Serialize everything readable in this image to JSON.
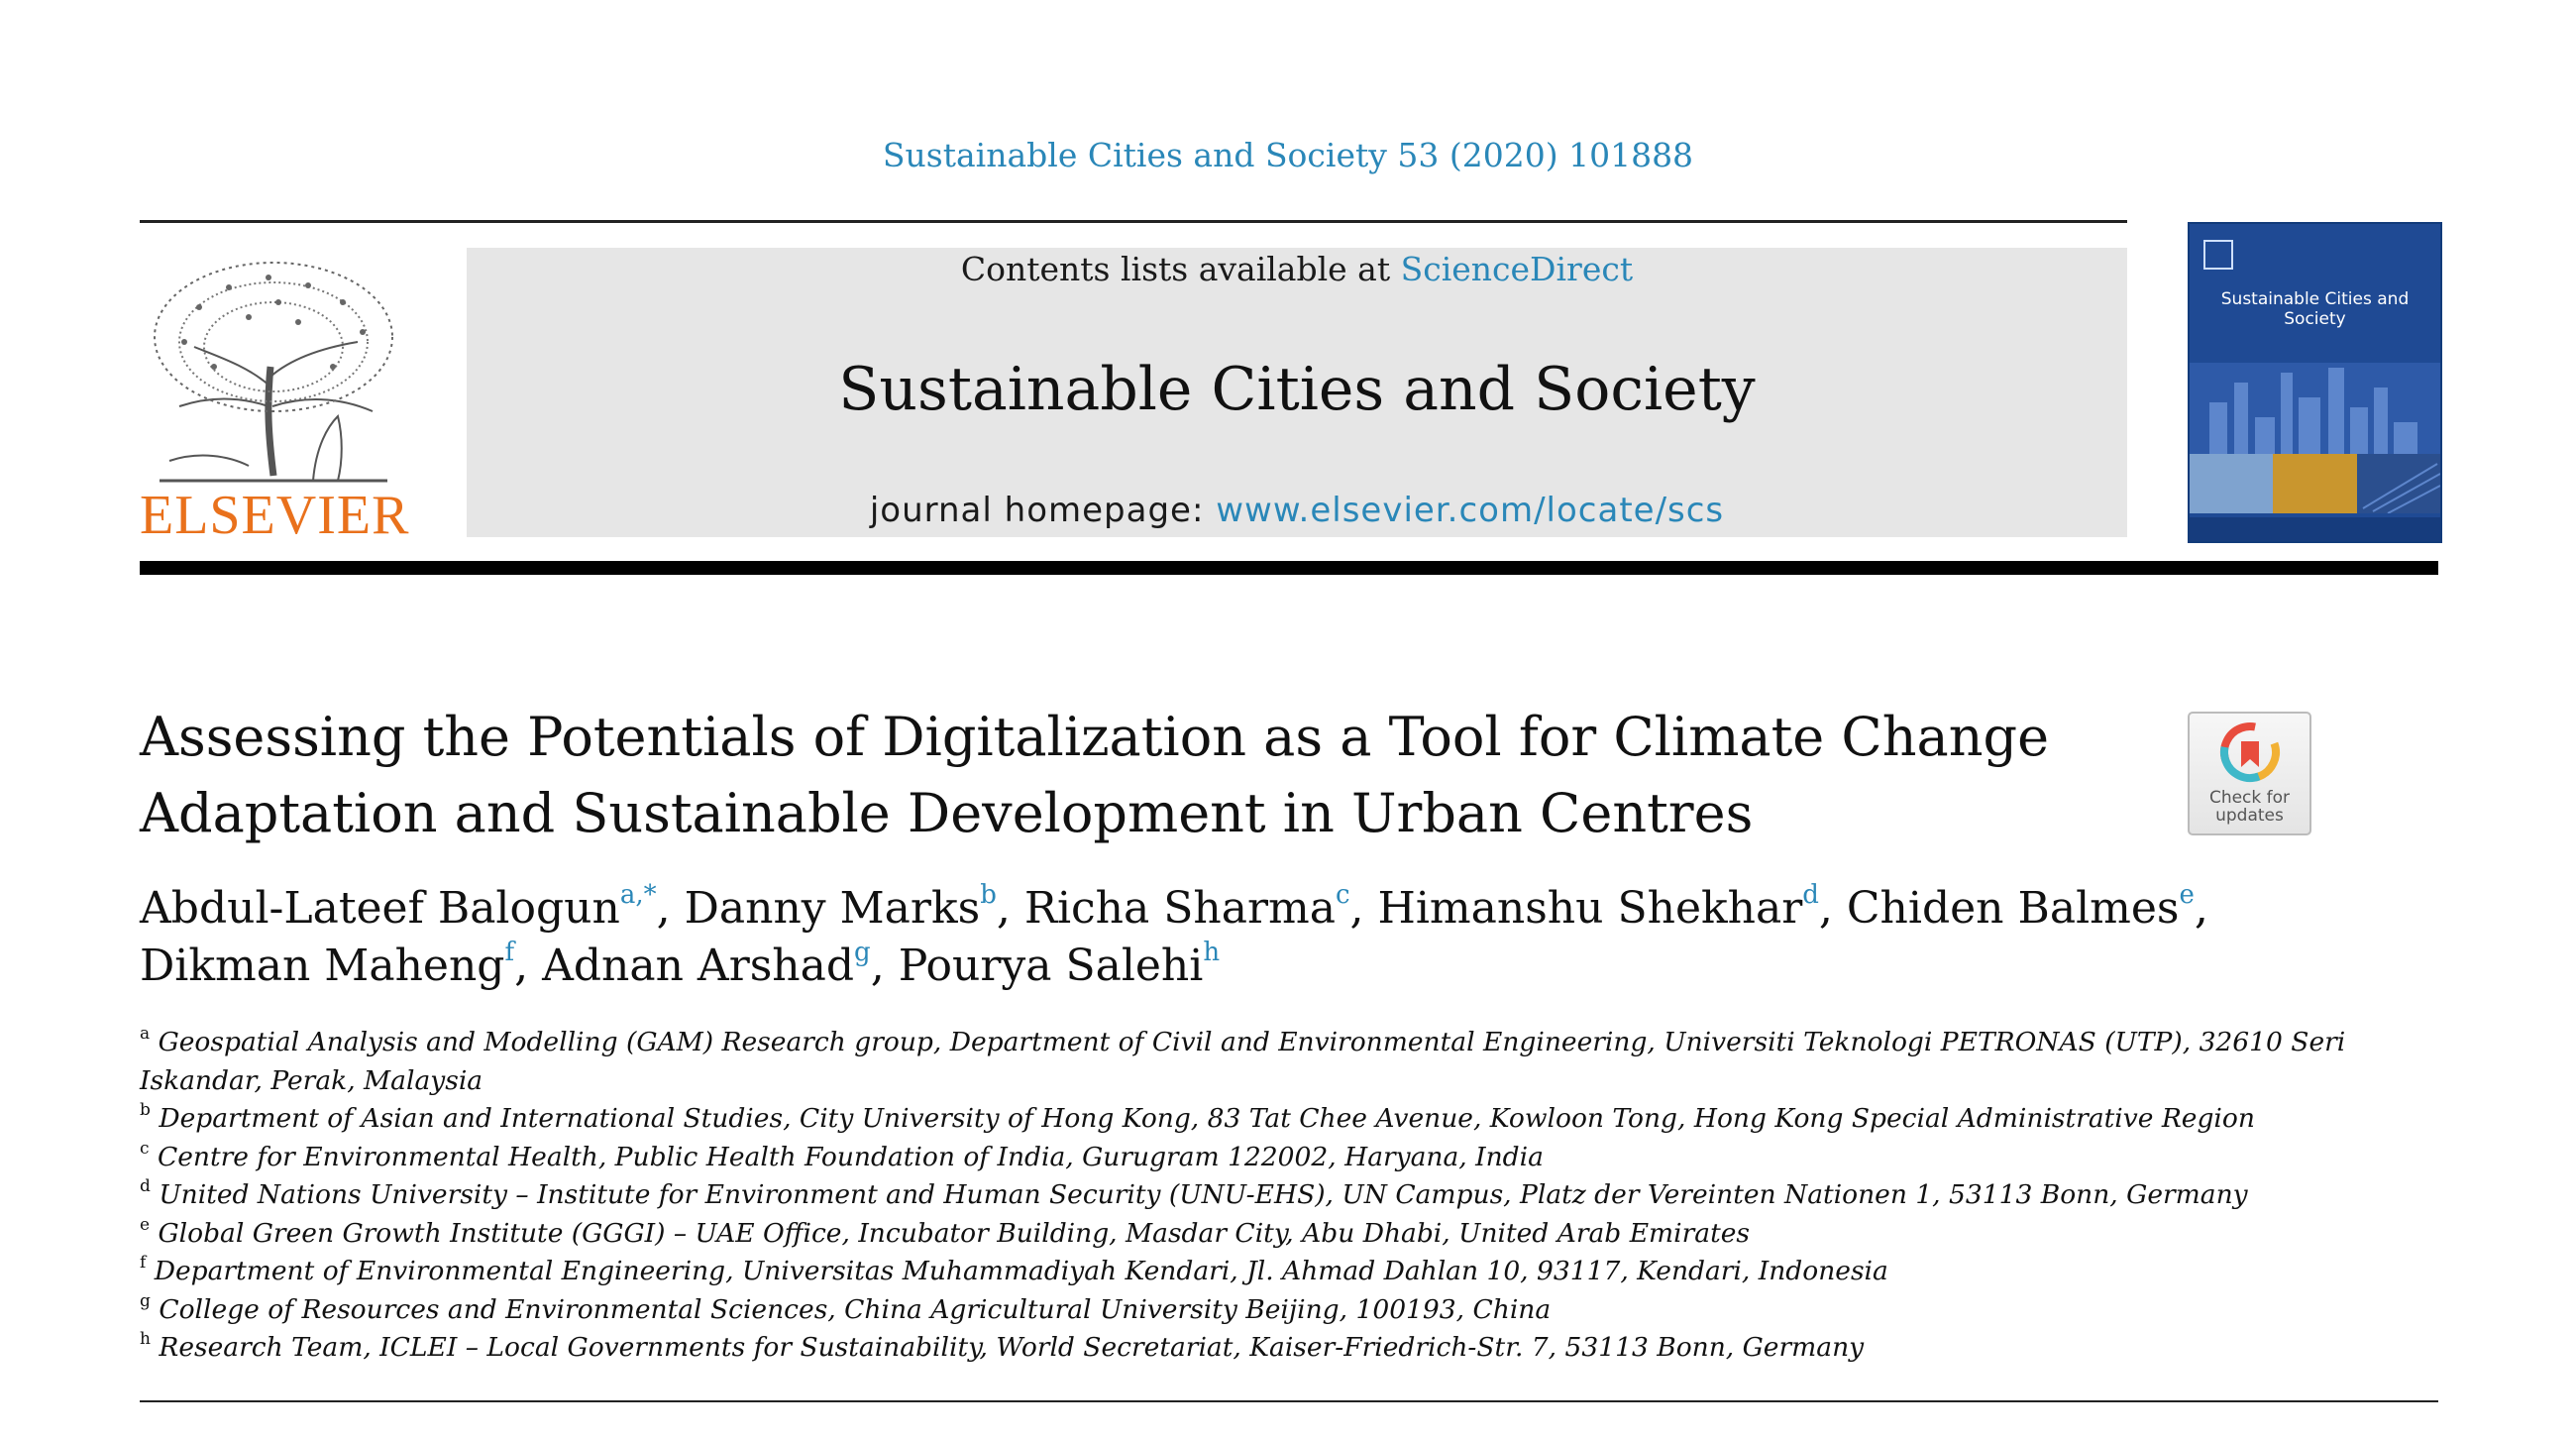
{
  "citation": "Sustainable Cities and Society 53 (2020) 101888",
  "publisher": {
    "logo_text": "ELSEVIER",
    "logo_color": "#e9711c"
  },
  "banner": {
    "contents_prefix": "Contents lists available at ",
    "contents_link": "ScienceDirect",
    "journal_title": "Sustainable Cities and Society",
    "homepage_prefix": "journal homepage: ",
    "homepage_url": "www.elsevier.com/locate/scs"
  },
  "cover": {
    "title": "Sustainable Cities and Society"
  },
  "article": {
    "title_line1": "Assessing the Potentials of Digitalization as a Tool for Climate Change",
    "title_line2": "Adaptation and Sustainable Development in Urban Centres",
    "check_label_line1": "Check for",
    "check_label_line2": "updates"
  },
  "authors": [
    {
      "name": "Abdul-Lateef Balogun",
      "mark": "a,",
      "extra": "*"
    },
    {
      "name": "Danny Marks",
      "mark": "b"
    },
    {
      "name": "Richa Sharma",
      "mark": "c"
    },
    {
      "name": "Himanshu Shekhar",
      "mark": "d"
    },
    {
      "name": "Chiden Balmes",
      "mark": "e"
    },
    {
      "name": "Dikman Maheng",
      "mark": "f"
    },
    {
      "name": "Adnan Arshad",
      "mark": "g"
    },
    {
      "name": "Pourya Salehi",
      "mark": "h"
    }
  ],
  "affiliations": [
    {
      "mark": "a",
      "line1": "Geospatial Analysis and Modelling (GAM) Research group, Department of Civil and Environmental Engineering, Universiti Teknologi PETRONAS (UTP), 32610 Seri",
      "line2": "Iskandar, Perak, Malaysia"
    },
    {
      "mark": "b",
      "line1": "Department of Asian and International Studies, City University of Hong Kong, 83 Tat Chee Avenue, Kowloon Tong, Hong Kong Special Administrative Region"
    },
    {
      "mark": "c",
      "line1": "Centre for Environmental Health, Public Health Foundation of India, Gurugram 122002, Haryana, India"
    },
    {
      "mark": "d",
      "line1": "United Nations University – Institute for Environment and Human Security (UNU-EHS), UN Campus, Platz der Vereinten Nationen 1, 53113 Bonn, Germany"
    },
    {
      "mark": "e",
      "line1": "Global Green Growth Institute (GGGI) – UAE Office, Incubator Building, Masdar City, Abu Dhabi, United Arab Emirates"
    },
    {
      "mark": "f",
      "line1": "Department of Environmental Engineering, Universitas Muhammadiyah Kendari, Jl. Ahmad Dahlan 10, 93117, Kendari, Indonesia"
    },
    {
      "mark": "g",
      "line1": "College of Resources and Environmental Sciences, China Agricultural University Beijing, 100193, China"
    },
    {
      "mark": "h",
      "line1": "Research Team, ICLEI – Local Governments for Sustainability, World Secretariat, Kaiser-Friedrich-Str. 7, 53113 Bonn, Germany"
    }
  ],
  "colors": {
    "link": "#2a87b8",
    "banner_bg": "#e6e6e6",
    "cover_bg": "#1f4a94"
  }
}
